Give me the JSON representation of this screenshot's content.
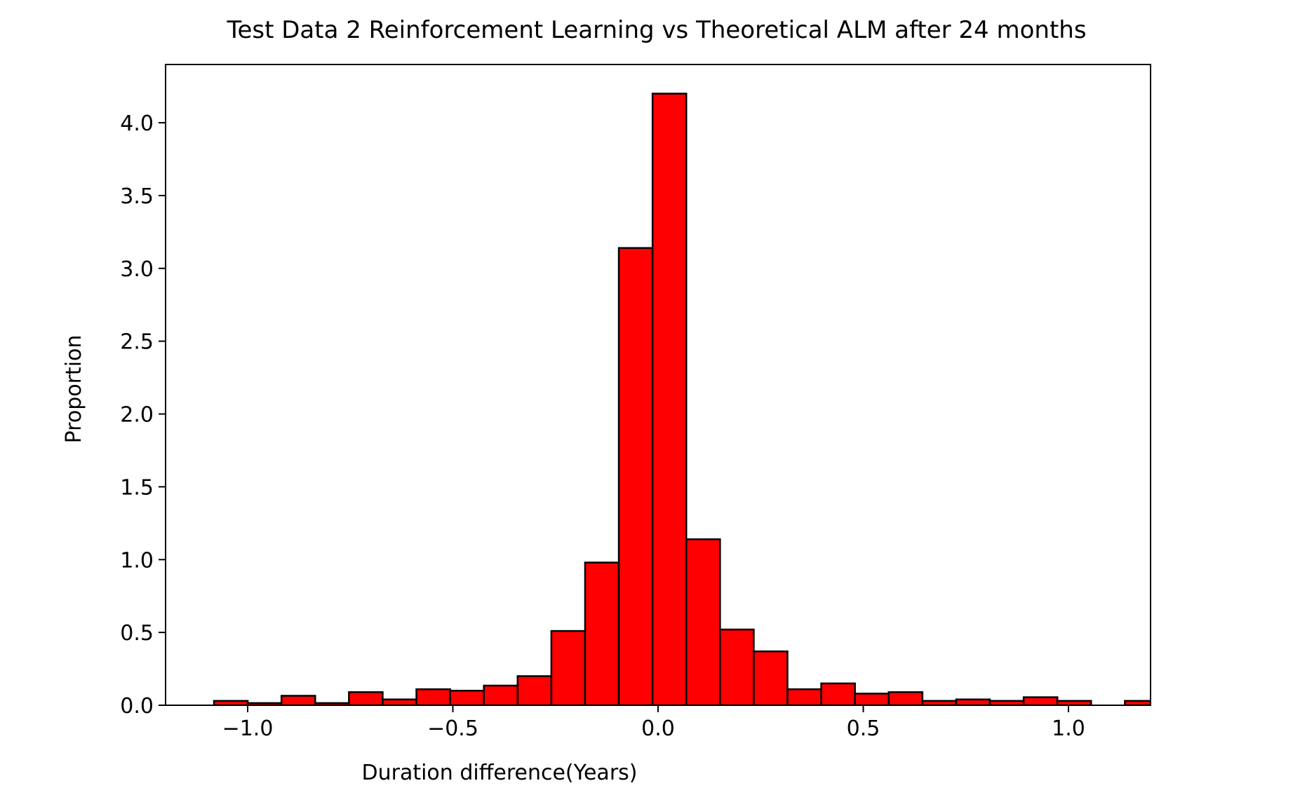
{
  "chart_data": {
    "type": "bar",
    "title": "Test Data 2 Reinforcement Learning vs Theoretical ALM after 24 months",
    "xlabel": "Duration difference(Years)",
    "ylabel": "Proportion",
    "xlim": [
      -1.2,
      1.2
    ],
    "ylim": [
      0,
      4.4
    ],
    "x_ticks": [
      -1.0,
      -0.5,
      0.0,
      0.5,
      1.0
    ],
    "x_tick_labels": [
      "−1.0",
      "−0.5",
      "0.0",
      "0.5",
      "1.0"
    ],
    "y_ticks": [
      0.0,
      0.5,
      1.0,
      1.5,
      2.0,
      2.5,
      3.0,
      3.5,
      4.0
    ],
    "y_tick_labels": [
      "0.0",
      "0.5",
      "1.0",
      "1.5",
      "2.0",
      "2.5",
      "3.0",
      "3.5",
      "4.0"
    ],
    "grid": false,
    "bar_color": "#ff0000",
    "edge_color": "#000000",
    "bins": [
      {
        "x0": -1.082,
        "x1": -0.9998,
        "value": 0.03
      },
      {
        "x0": -0.9998,
        "x1": -0.9176,
        "value": 0.015
      },
      {
        "x0": -0.9176,
        "x1": -0.8354,
        "value": 0.065
      },
      {
        "x0": -0.8354,
        "x1": -0.7532,
        "value": 0.015
      },
      {
        "x0": -0.7532,
        "x1": -0.671,
        "value": 0.09
      },
      {
        "x0": -0.671,
        "x1": -0.5888,
        "value": 0.04
      },
      {
        "x0": -0.5888,
        "x1": -0.5066,
        "value": 0.11
      },
      {
        "x0": -0.5066,
        "x1": -0.4244,
        "value": 0.1
      },
      {
        "x0": -0.4244,
        "x1": -0.3422,
        "value": 0.135
      },
      {
        "x0": -0.3422,
        "x1": -0.26,
        "value": 0.2
      },
      {
        "x0": -0.26,
        "x1": -0.1778,
        "value": 0.51
      },
      {
        "x0": -0.1778,
        "x1": -0.0956,
        "value": 0.98
      },
      {
        "x0": -0.0956,
        "x1": -0.0134,
        "value": 3.14
      },
      {
        "x0": -0.0134,
        "x1": 0.0688,
        "value": 4.2
      },
      {
        "x0": 0.0688,
        "x1": 0.151,
        "value": 1.14
      },
      {
        "x0": 0.151,
        "x1": 0.2332,
        "value": 0.52
      },
      {
        "x0": 0.2332,
        "x1": 0.3154,
        "value": 0.37
      },
      {
        "x0": 0.3154,
        "x1": 0.3976,
        "value": 0.11
      },
      {
        "x0": 0.3976,
        "x1": 0.4798,
        "value": 0.15
      },
      {
        "x0": 0.4798,
        "x1": 0.562,
        "value": 0.08
      },
      {
        "x0": 0.562,
        "x1": 0.6442,
        "value": 0.09
      },
      {
        "x0": 0.6442,
        "x1": 0.7264,
        "value": 0.03
      },
      {
        "x0": 0.7264,
        "x1": 0.8086,
        "value": 0.04
      },
      {
        "x0": 0.8086,
        "x1": 0.8908,
        "value": 0.03
      },
      {
        "x0": 0.8908,
        "x1": 0.973,
        "value": 0.055
      },
      {
        "x0": 0.973,
        "x1": 1.0552,
        "value": 0.03
      },
      {
        "x0": 1.0552,
        "x1": 1.1374,
        "value": 0.0
      },
      {
        "x0": 1.1374,
        "x1": 1.2196,
        "value": 0.03
      }
    ]
  }
}
